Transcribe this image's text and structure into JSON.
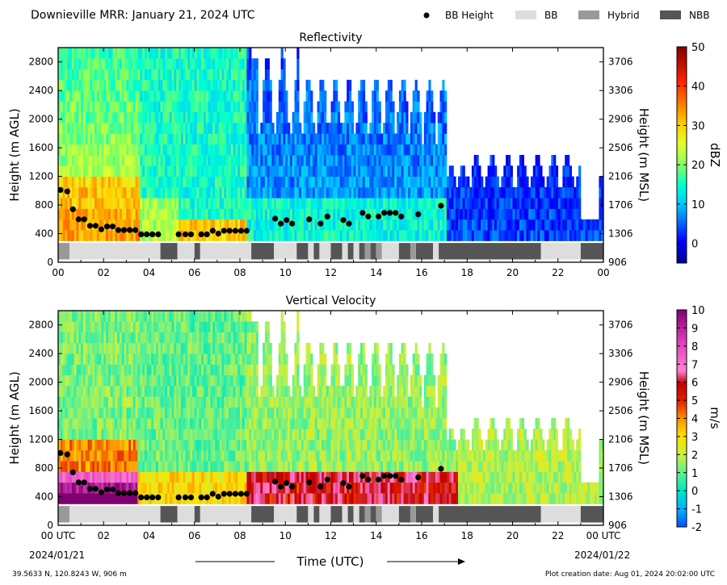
{
  "header": {
    "title": "Downieville MRR:  January 21, 2024 UTC",
    "legend": [
      {
        "label": "BB Height",
        "kind": "dot",
        "color": "#000000"
      },
      {
        "label": "BB",
        "kind": "box",
        "color": "#dddddd"
      },
      {
        "label": "Hybrid",
        "kind": "box",
        "color": "#999999"
      },
      {
        "label": "NBB",
        "kind": "box",
        "color": "#555555"
      }
    ]
  },
  "footer": {
    "location": "39.5633 N, 120.8243 W, 906 m",
    "created": "Plot creation date: Aug 01, 2024 20:02:00 UTC",
    "xlabel": "Time (UTC)",
    "date_start": "2024/01/21",
    "date_end": "2024/01/22"
  },
  "colors": {
    "bb": "#dddddd",
    "hybrid": "#999999",
    "nbb": "#555555",
    "dot": "#000000"
  },
  "chart_data": [
    {
      "type": "heatmap",
      "title": "Reflectivity",
      "xlabel": "Time (UTC)",
      "ylabel": "Height (m AGL)",
      "y2label": "Height (m MSL)",
      "xlim": [
        0,
        24
      ],
      "ylim": [
        0,
        3000
      ],
      "xticks": [
        "00",
        "02",
        "04",
        "06",
        "08",
        "10",
        "12",
        "14",
        "16",
        "18",
        "20",
        "22",
        "00"
      ],
      "yticks": [
        0,
        400,
        800,
        1200,
        1600,
        2000,
        2400,
        2800
      ],
      "y2ticks": [
        906,
        1306,
        1706,
        2106,
        2506,
        2906,
        3306,
        3706
      ],
      "colorbar": {
        "label": "dBZ",
        "min": -5,
        "max": 50,
        "ticks": [
          0,
          10,
          20,
          30,
          40,
          50
        ]
      },
      "bb_height": {
        "hours": [
          0.1,
          0.4,
          0.65,
          0.9,
          1.15,
          1.4,
          1.65,
          1.9,
          2.15,
          2.4,
          2.65,
          2.9,
          3.15,
          3.4,
          3.65,
          3.9,
          4.15,
          4.4,
          5.3,
          5.6,
          5.85,
          6.3,
          6.55,
          6.8,
          7.05,
          7.3,
          7.55,
          7.8,
          8.05,
          8.3,
          9.55,
          9.8,
          10.05,
          10.3,
          11.05,
          11.55,
          11.85,
          12.55,
          12.8,
          13.4,
          13.65,
          14.1,
          14.35,
          14.6,
          14.85,
          15.1,
          15.85,
          16.85
        ],
        "heights": [
          1010,
          990,
          740,
          600,
          600,
          510,
          510,
          460,
          500,
          500,
          450,
          450,
          450,
          450,
          390,
          390,
          390,
          390,
          390,
          390,
          390,
          390,
          390,
          440,
          400,
          440,
          440,
          440,
          440,
          440,
          610,
          540,
          590,
          540,
          600,
          540,
          640,
          590,
          540,
          690,
          640,
          640,
          690,
          690,
          690,
          640,
          670,
          790
        ]
      },
      "bb_type": [
        {
          "start": 0,
          "end": 0.5,
          "type": "Hybrid"
        },
        {
          "start": 0.5,
          "end": 4.5,
          "type": "BB"
        },
        {
          "start": 4.5,
          "end": 5.25,
          "type": "NBB"
        },
        {
          "start": 5.25,
          "end": 6.0,
          "type": "BB"
        },
        {
          "start": 6.0,
          "end": 6.25,
          "type": "NBB"
        },
        {
          "start": 6.25,
          "end": 8.5,
          "type": "BB"
        },
        {
          "start": 8.5,
          "end": 9.5,
          "type": "NBB"
        },
        {
          "start": 9.5,
          "end": 10.5,
          "type": "BB"
        },
        {
          "start": 10.5,
          "end": 11.0,
          "type": "NBB"
        },
        {
          "start": 11.0,
          "end": 11.25,
          "type": "BB"
        },
        {
          "start": 11.25,
          "end": 11.5,
          "type": "NBB"
        },
        {
          "start": 11.5,
          "end": 12.0,
          "type": "BB"
        },
        {
          "start": 12.0,
          "end": 12.5,
          "type": "NBB"
        },
        {
          "start": 12.5,
          "end": 12.75,
          "type": "BB"
        },
        {
          "start": 12.75,
          "end": 13.0,
          "type": "NBB"
        },
        {
          "start": 13.0,
          "end": 13.25,
          "type": "BB"
        },
        {
          "start": 13.25,
          "end": 13.5,
          "type": "NBB"
        },
        {
          "start": 13.5,
          "end": 13.75,
          "type": "Hybrid"
        },
        {
          "start": 13.75,
          "end": 14.0,
          "type": "NBB"
        },
        {
          "start": 14.0,
          "end": 14.25,
          "type": "Hybrid"
        },
        {
          "start": 14.25,
          "end": 15.0,
          "type": "BB"
        },
        {
          "start": 15.0,
          "end": 15.5,
          "type": "NBB"
        },
        {
          "start": 15.5,
          "end": 15.75,
          "type": "Hybrid"
        },
        {
          "start": 15.75,
          "end": 16.5,
          "type": "NBB"
        },
        {
          "start": 16.5,
          "end": 16.75,
          "type": "BB"
        },
        {
          "start": 16.75,
          "end": 21.25,
          "type": "NBB"
        },
        {
          "start": 21.25,
          "end": 23.0,
          "type": "BB"
        },
        {
          "start": 23.0,
          "end": 24.0,
          "type": "NBB"
        }
      ]
    },
    {
      "type": "heatmap",
      "title": "Vertical Velocity",
      "xlabel": "Time (UTC)",
      "ylabel": "Height (m AGL)",
      "y2label": "Height (m MSL)",
      "xlim": [
        0,
        24
      ],
      "ylim": [
        0,
        3000
      ],
      "xticks": [
        "00 UTC",
        "02",
        "04",
        "06",
        "08",
        "10",
        "12",
        "14",
        "16",
        "18",
        "20",
        "22",
        "00 UTC"
      ],
      "yticks": [
        0,
        400,
        800,
        1200,
        1600,
        2000,
        2400,
        2800
      ],
      "y2ticks": [
        906,
        1306,
        1706,
        2106,
        2506,
        2906,
        3306,
        3706
      ],
      "colorbar": {
        "label": "m/s",
        "min": -2,
        "max": 10,
        "ticks": [
          -2,
          -1,
          0,
          1,
          2,
          3,
          4,
          5,
          6,
          7,
          8,
          9,
          10
        ]
      }
    }
  ]
}
